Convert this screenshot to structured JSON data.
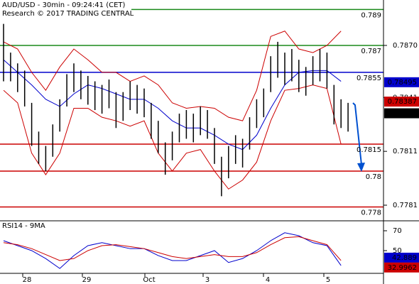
{
  "chart_data": {
    "type": "ohlc",
    "title": "AUD/USD - 30min - 09:24:41 (CET)",
    "subtitle": "Research © 2017 TRADING CENTRAL",
    "ylim": [
      0.77727,
      0.78953
    ],
    "yticks": [
      {
        "value": 0.787,
        "label": "0.7870"
      },
      0.7841,
      0.7811,
      0.7781
    ],
    "x_labels": [
      "28",
      "29",
      "Oct",
      "3",
      "4",
      "5"
    ],
    "bar_color": "#000000",
    "high": [
      0.7882,
      0.7866,
      0.786,
      0.7856,
      0.7838,
      0.7822,
      0.7814,
      0.7826,
      0.784,
      0.7854,
      0.786,
      0.7856,
      0.7853,
      0.785,
      0.7848,
      0.7851,
      0.7844,
      0.7844,
      0.785,
      0.7848,
      0.7846,
      0.7838,
      0.7828,
      0.7816,
      0.7822,
      0.7832,
      0.7834,
      0.7832,
      0.7836,
      0.7834,
      0.7824,
      0.7808,
      0.7814,
      0.782,
      0.7818,
      0.783,
      0.784,
      0.7846,
      0.7864,
      0.7872,
      0.7866,
      0.7868,
      0.7862,
      0.7858,
      0.7864,
      0.7868,
      0.7866,
      0.7848,
      0.784,
      0.7838
    ],
    "low": [
      0.785,
      0.785,
      0.7844,
      0.7836,
      0.7814,
      0.7804,
      0.78,
      0.7808,
      0.7822,
      0.7836,
      0.7844,
      0.784,
      0.7837,
      0.7834,
      0.7832,
      0.7835,
      0.7824,
      0.7828,
      0.7834,
      0.7832,
      0.783,
      0.7818,
      0.781,
      0.7798,
      0.7806,
      0.7816,
      0.7818,
      0.7816,
      0.782,
      0.7818,
      0.7804,
      0.7786,
      0.7796,
      0.7804,
      0.7802,
      0.7812,
      0.7824,
      0.783,
      0.7844,
      0.7852,
      0.7848,
      0.785,
      0.7844,
      0.7842,
      0.7848,
      0.785,
      0.7846,
      0.7826,
      0.7824,
      0.7822
    ],
    "bands": [
      {
        "name": "upper",
        "color": "#cc0000",
        "values": [
          0.7872,
          0.7868,
          0.7855,
          0.7845,
          0.7858,
          0.7868,
          0.7862,
          0.7855,
          0.7855,
          0.785,
          0.7853,
          0.7848,
          0.7838,
          0.7835,
          0.7836,
          0.7835,
          0.783,
          0.7828,
          0.7845,
          0.7875,
          0.7878,
          0.7868,
          0.7866,
          0.787,
          0.7878
        ]
      },
      {
        "name": "lower",
        "color": "#cc0000",
        "values": [
          0.7845,
          0.7838,
          0.781,
          0.7798,
          0.781,
          0.7835,
          0.7835,
          0.783,
          0.7828,
          0.7825,
          0.7828,
          0.781,
          0.78,
          0.781,
          0.7812,
          0.78,
          0.779,
          0.7795,
          0.7805,
          0.7828,
          0.7845,
          0.7846,
          0.7848,
          0.7846,
          0.7815
        ]
      },
      {
        "name": "middle",
        "color": "#0000cc",
        "values": [
          0.7862,
          0.7855,
          0.7848,
          0.784,
          0.7836,
          0.7843,
          0.7848,
          0.7846,
          0.7843,
          0.784,
          0.784,
          0.7835,
          0.7828,
          0.7824,
          0.7824,
          0.782,
          0.7815,
          0.7812,
          0.782,
          0.7835,
          0.7848,
          0.7855,
          0.7856,
          0.7856,
          0.785
        ]
      }
    ],
    "levels": [
      {
        "value": 0.789,
        "color": "#1a8a1a"
      },
      {
        "value": 0.787,
        "color": "#1a8a1a"
      },
      {
        "value": 0.7855,
        "color": "#0000cc"
      },
      {
        "value": 0.7815,
        "color": "#cc0000"
      },
      {
        "value": 0.78,
        "color": "#cc0000"
      },
      {
        "value": 0.778,
        "color": "#cc0000"
      }
    ],
    "price_markers": [
      {
        "value": 0.78495,
        "color": "#0000cc"
      },
      {
        "value": 0.78387,
        "color": "#cc0000"
      },
      {
        "value": 0.78322,
        "color": "#000000"
      }
    ],
    "rsi": {
      "label": "RSI14 - 9MA",
      "ylim": [
        27.1,
        79.3
      ],
      "yticks": [
        70,
        50
      ],
      "series": [
        {
          "name": "RSI14",
          "color": "#0000cc",
          "values": [
            60,
            55,
            50,
            42,
            32,
            45,
            55,
            58,
            55,
            52,
            52,
            45,
            40,
            40,
            45,
            50,
            38,
            42,
            50,
            60,
            68,
            65,
            58,
            55,
            35
          ]
        },
        {
          "name": "9MA",
          "color": "#cc0000",
          "values": [
            58,
            56,
            52,
            46,
            40,
            42,
            50,
            55,
            56,
            54,
            52,
            48,
            44,
            42,
            44,
            46,
            44,
            44,
            48,
            56,
            63,
            64,
            60,
            56,
            40
          ]
        }
      ],
      "markers": [
        {
          "value": 42.889,
          "color": "#0000cc"
        },
        {
          "value": 32.9962,
          "color": "#cc0000"
        }
      ]
    }
  }
}
